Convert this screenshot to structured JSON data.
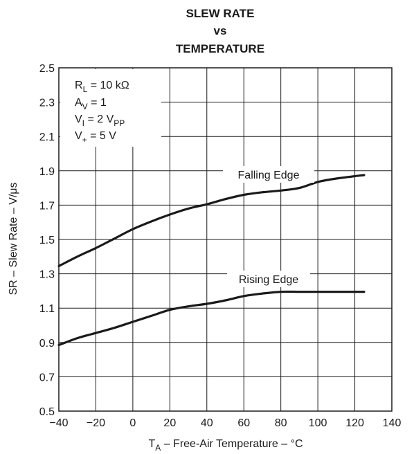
{
  "chart_data": {
    "type": "line",
    "title_lines": [
      "SLEW RATE",
      "vs",
      "TEMPERATURE"
    ],
    "xlabel": {
      "pre": "T",
      "sub": "A",
      "post": " – Free-Air Temperature – °C"
    },
    "ylabel": "SR – Slew Rate – V/μs",
    "xlim": [
      -40,
      140
    ],
    "ylim": [
      0.5,
      2.5
    ],
    "x_ticks": [
      -40,
      -20,
      0,
      20,
      40,
      60,
      80,
      100,
      120,
      140
    ],
    "x_tick_labels": [
      "−40",
      "−20",
      "0",
      "20",
      "40",
      "60",
      "80",
      "100",
      "120",
      "140"
    ],
    "y_ticks": [
      0.5,
      0.7,
      0.9,
      1.1,
      1.3,
      1.5,
      1.7,
      1.9,
      2.1,
      2.3,
      2.5
    ],
    "y_tick_labels": [
      "0.5",
      "0.7",
      "0.9",
      "1.1",
      "1.3",
      "1.5",
      "1.7",
      "1.9",
      "2.1",
      "2.3",
      "2.5"
    ],
    "grid": true,
    "conditions": [
      {
        "pre": "R",
        "sub": "L",
        "post": " = 10 kΩ"
      },
      {
        "pre": "A",
        "sub": "V",
        "post": " = 1"
      },
      {
        "pre": "V",
        "sub": "I",
        "post": " = 2 V",
        "sub2": "PP"
      },
      {
        "pre": "V",
        "sub": "+",
        "post": "  = 5 V"
      }
    ],
    "series": [
      {
        "name": "Falling Edge",
        "x": [
          -40,
          -30,
          -20,
          -10,
          0,
          10,
          20,
          30,
          40,
          50,
          60,
          70,
          80,
          90,
          100,
          110,
          125
        ],
        "y": [
          1.345,
          1.4,
          1.45,
          1.505,
          1.56,
          1.605,
          1.645,
          1.68,
          1.705,
          1.735,
          1.76,
          1.775,
          1.785,
          1.8,
          1.835,
          1.855,
          1.875
        ]
      },
      {
        "name": "Rising Edge",
        "x": [
          -40,
          -30,
          -20,
          -10,
          0,
          10,
          20,
          30,
          40,
          50,
          60,
          70,
          80,
          90,
          100,
          110,
          125
        ],
        "y": [
          0.885,
          0.925,
          0.955,
          0.985,
          1.02,
          1.055,
          1.09,
          1.11,
          1.125,
          1.145,
          1.17,
          1.185,
          1.195,
          1.195,
          1.195,
          1.195,
          1.195
        ]
      }
    ]
  },
  "colors": {
    "line": "#1a1a1a",
    "grid": "#1a1a1a",
    "background": "#ffffff"
  }
}
